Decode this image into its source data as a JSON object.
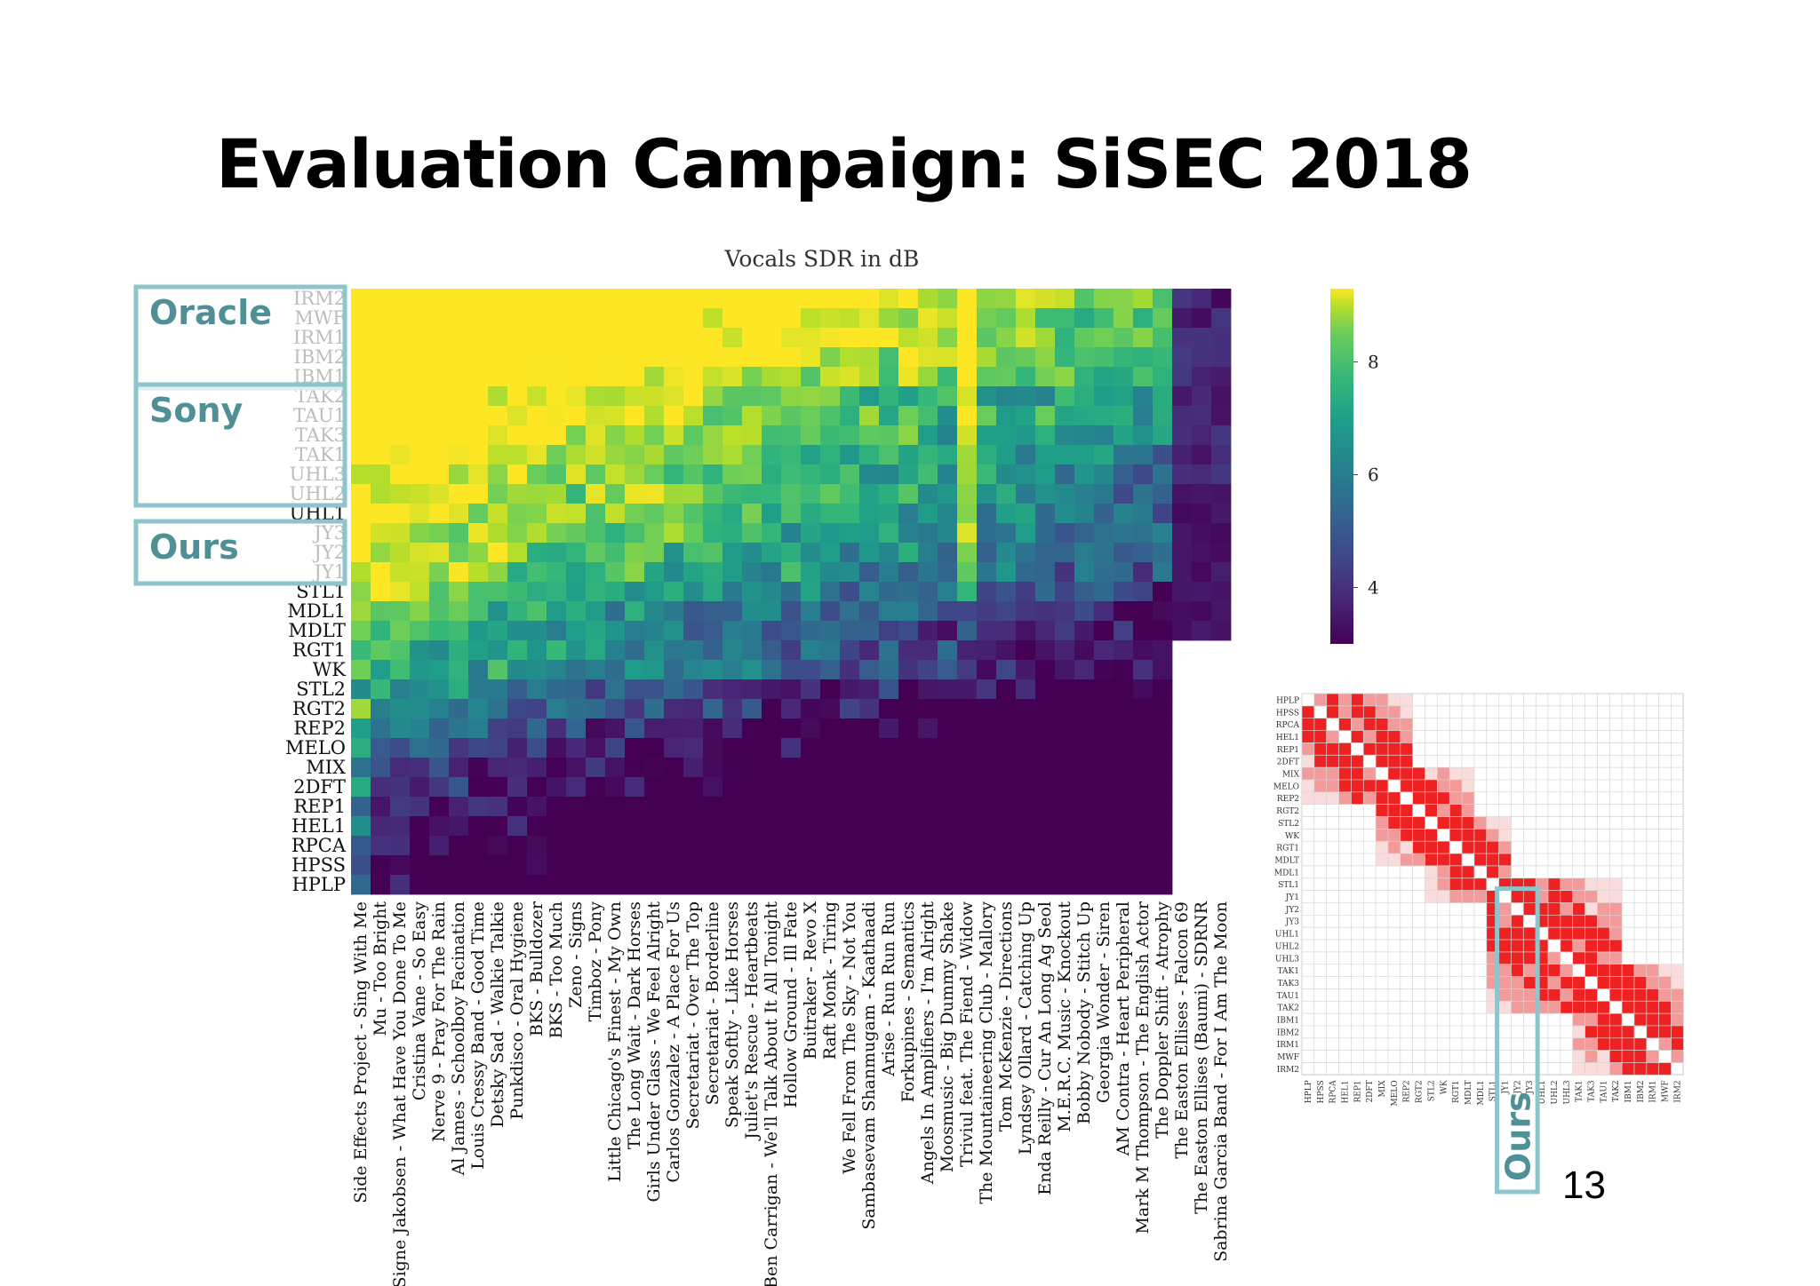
{
  "slide": {
    "title": "Evaluation Campaign: SiSEC 2018",
    "page_number": "13"
  },
  "callouts": [
    {
      "label": "Oracle",
      "rows": [
        "IRM2",
        "IBM1"
      ]
    },
    {
      "label": "Sony",
      "rows": [
        "TAK2",
        "UHL2"
      ]
    },
    {
      "label": "Ours",
      "rows": [
        "JY3",
        "JY1"
      ]
    }
  ],
  "corr_callout": {
    "label": "Ours",
    "cols": [
      "JY1",
      "JY3"
    ]
  },
  "colors": {
    "callout_border": "#8ec5cc",
    "callout_text": "#4f8f96",
    "corr_high": "#ee2222",
    "corr_mid": "#f39a9a",
    "corr_low": "#fadcdc",
    "grid": "#d6d6d6"
  },
  "chart_data": [
    {
      "type": "heatmap",
      "title": "Vocals SDR in dB",
      "colormap": "viridis",
      "colorbar": {
        "ticks": [
          8,
          6,
          4
        ],
        "vmin": 3,
        "vmax": 9.3
      },
      "rows": [
        "IRM2",
        "MWF",
        "IRM1",
        "IBM2",
        "IBM1",
        "TAK2",
        "TAU1",
        "TAK3",
        "TAK1",
        "UHL3",
        "UHL2",
        "UHL1",
        "JY3",
        "JY2",
        "JY1",
        "STL1",
        "MDL1",
        "MDLT",
        "RGT1",
        "WK",
        "STL2",
        "RGT2",
        "REP2",
        "MELO",
        "MIX",
        "2DFT",
        "REP1",
        "HEL1",
        "RPCA",
        "HPSS",
        "HPLP"
      ],
      "row_label_visibility": "rows IBM1, UHL1 and STL1 are partly hidden behind the callout boxes",
      "columns": [
        "Side Effects Project - Sing With Me",
        "Mu - Too Bright",
        "Signe Jakobsen - What Have You Done To Me",
        "Cristina Vane - So Easy",
        "Nerve 9 - Pray For The Rain",
        "Al James - Schoolboy Facination",
        "Louis Cressy Band - Good Time",
        "Detsky Sad - Walkie Talkie",
        "Punkdisco - Oral Hygiene",
        "BKS - Bulldozer",
        "BKS - Too Much",
        "Zeno - Signs",
        "Timboz - Pony",
        "Little Chicago's Finest - My Own",
        "The Long Wait - Dark Horses",
        "Girls Under Glass - We Feel Alright",
        "Carlos Gonzalez - A Place For Us",
        "Secretariat - Over The Top",
        "Secretariat - Borderline",
        "Speak Softly - Like Horses",
        "Juliet's Rescue - Heartbeats",
        "Ben Carrigan - We'll Talk About It All Tonight",
        "Hollow Ground - Ill Fate",
        "Buitraker - Revo X",
        "Raft Monk - Tiring",
        "We Fell From The Sky - Not You",
        "Sambasevam Shanmugam - Kaathaadi",
        "Arise - Run Run Run",
        "Forkupines - Semantics",
        "Angels In Amplifiers - I'm Alright",
        "Moosmusic - Big Dummy Shake",
        "Triviul feat. The Fiend - Widow",
        "The Mountaineering Club - Mallory",
        "Tom McKenzie - Directions",
        "Lyndsey Ollard - Catching Up",
        "Enda Reilly - Cur An Long Ag Seol",
        "M.E.R.C. Music - Knockout",
        "Bobby Nobody - Stitch Up",
        "Georgia Wonder - Siren",
        "AM Contra - Heart Peripheral",
        "Mark M Thompson - The English Actor",
        "The Doppler Shift - Atrophy",
        "The Easton Ellises - Falcon 69",
        "The Easton Ellises (Baumi) - SDRNR",
        "Sabrina Garcia Band - For I Am The Moon"
      ],
      "column_label_visibility": "left part of the longest labels is cut off at the slide edge",
      "zero_columns_rows": [
        "IRM2",
        "MWF",
        "IRM1",
        "IBM2",
        "IBM1",
        "TAK2",
        "TAU1",
        "TAK3",
        "TAK1",
        "UHL3",
        "UHL2",
        "UHL1",
        "JY3",
        "JY2",
        "JY1",
        "STL1",
        "MDL1",
        "MDLT"
      ]
    },
    {
      "type": "heatmap",
      "description": "pairwise significance matrix (inset)",
      "labels": [
        "HPLP",
        "HPSS",
        "RPCA",
        "HEL1",
        "REP1",
        "2DFT",
        "MIX",
        "MELO",
        "REP2",
        "RGT2",
        "STL2",
        "WK",
        "RGT1",
        "MDLT",
        "MDL1",
        "STL1",
        "JY1",
        "JY2",
        "JY3",
        "UHL1",
        "UHL2",
        "UHL3",
        "TAK1",
        "TAK3",
        "TAU1",
        "TAK2",
        "IBM1",
        "IBM2",
        "IRM1",
        "MWF",
        "IRM2"
      ],
      "blocks": [
        {
          "from": 0,
          "to": 8,
          "level": "high"
        },
        {
          "from": 6,
          "to": 13,
          "level": "high"
        },
        {
          "from": 10,
          "to": 16,
          "level": "high"
        },
        {
          "from": 15,
          "to": 25,
          "level": "high"
        },
        {
          "from": 22,
          "to": 30,
          "level": "high"
        }
      ]
    }
  ]
}
